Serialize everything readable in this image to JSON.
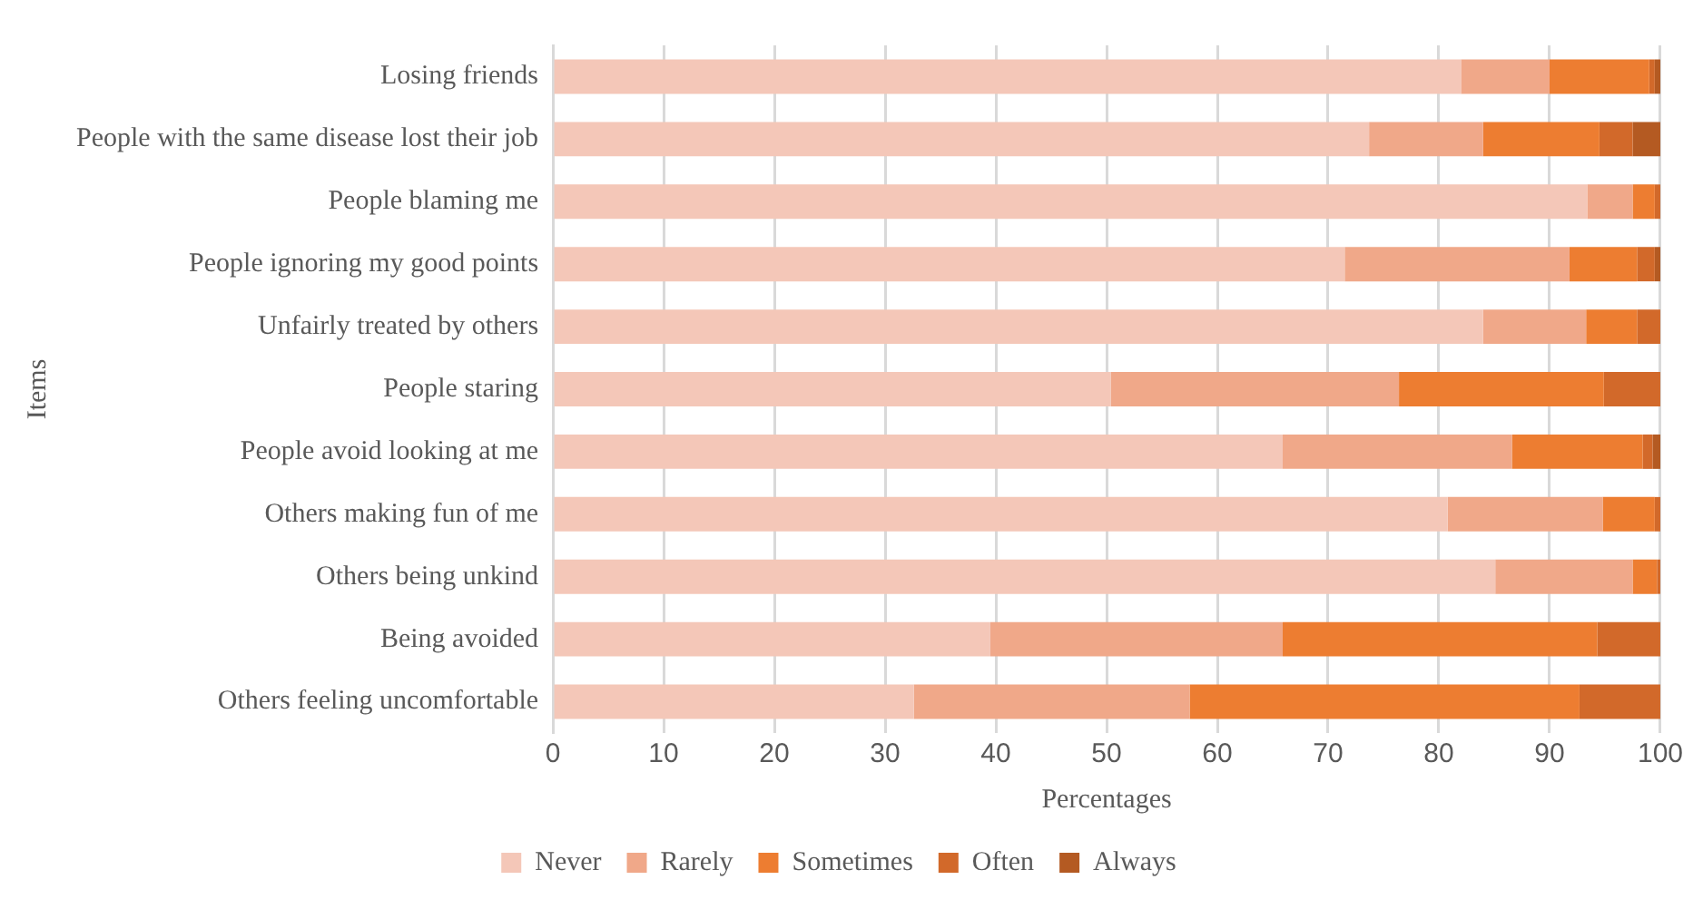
{
  "chart_data": {
    "type": "bar",
    "orientation": "horizontal",
    "stacked": true,
    "xlabel": "Percentages",
    "ylabel": "Items",
    "categories": [
      "Losing friends",
      "People with the same disease lost their job",
      "People blaming me",
      "People ignoring my good points",
      "Unfairly treated by others",
      "People staring",
      "People avoid looking at me",
      "Others making fun of me",
      "Others being unkind",
      "Being avoided",
      "Others feeling uncomfortable"
    ],
    "series": [
      {
        "name": "Never",
        "color": "#f4c7b8",
        "values": [
          82,
          73.7,
          93.4,
          71.5,
          84,
          50.4,
          65.9,
          80.8,
          85.1,
          39.5,
          32.6
        ]
      },
      {
        "name": "Rarely",
        "color": "#f0a889",
        "values": [
          8,
          10.3,
          4.1,
          20.3,
          9.3,
          26,
          20.7,
          14,
          12.4,
          26.4,
          24.9
        ]
      },
      {
        "name": "Sometimes",
        "color": "#ed7d31",
        "values": [
          9,
          10.5,
          2,
          6.1,
          4.6,
          18.5,
          11.8,
          4.7,
          2.2,
          28.4,
          35.2
        ]
      },
      {
        "name": "Often",
        "color": "#d2692a",
        "values": [
          0.5,
          3,
          0.5,
          1.6,
          2.1,
          5.1,
          0.9,
          0.5,
          0.3,
          5.7,
          7.3
        ]
      },
      {
        "name": "Always",
        "color": "#b45a22",
        "values": [
          0.5,
          2.5,
          0,
          0.5,
          0,
          0,
          0.7,
          0,
          0,
          0,
          0
        ]
      }
    ],
    "xlim": [
      0,
      100
    ],
    "xticks": [
      0,
      10,
      20,
      30,
      40,
      50,
      60,
      70,
      80,
      90,
      100
    ],
    "grid": "x",
    "legend": "bottom"
  }
}
